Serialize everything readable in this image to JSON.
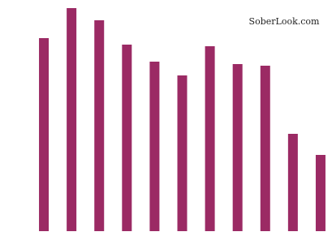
{
  "chart_data": {
    "type": "bar",
    "watermark": "SoberLook.com",
    "categories": [
      null,
      null,
      null,
      null,
      null,
      null,
      null,
      null,
      null,
      null,
      null
    ],
    "values": [
      238,
      275,
      260,
      230,
      209,
      192,
      228,
      206,
      204,
      120,
      94
    ],
    "color": "#9b2a64",
    "ylim": [
      0,
      275
    ]
  }
}
